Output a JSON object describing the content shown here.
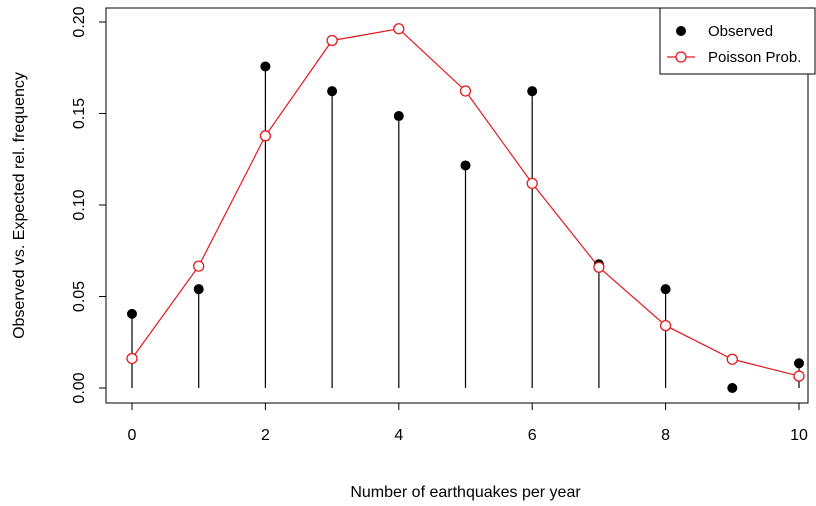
{
  "chart_data": {
    "type": "scatter",
    "xlabel": "Number of earthquakes per year",
    "ylabel": "Observed vs. Expected rel. frequency",
    "xlim": [
      0,
      10
    ],
    "ylim": [
      0,
      0.2
    ],
    "grid": false,
    "legend_position": "top-right",
    "x_ticks": [
      {
        "value": 0,
        "label": "0"
      },
      {
        "value": 2,
        "label": "2"
      },
      {
        "value": 4,
        "label": "4"
      },
      {
        "value": 6,
        "label": "6"
      },
      {
        "value": 8,
        "label": "8"
      },
      {
        "value": 10,
        "label": "10"
      }
    ],
    "y_ticks": [
      {
        "value": 0.0,
        "label": "0.00"
      },
      {
        "value": 0.05,
        "label": "0.05"
      },
      {
        "value": 0.1,
        "label": "0.10"
      },
      {
        "value": 0.15,
        "label": "0.15"
      },
      {
        "value": 0.2,
        "label": "0.20"
      }
    ],
    "x": [
      0,
      1,
      2,
      3,
      4,
      5,
      6,
      7,
      8,
      9,
      10
    ],
    "series": [
      {
        "name": "Observed",
        "style": "filled-points-with-drop-lines",
        "color": "#000000",
        "values": [
          0.0405,
          0.054,
          0.1757,
          0.1622,
          0.1486,
          0.1216,
          0.1622,
          0.0676,
          0.054,
          0.0,
          0.0135
        ]
      },
      {
        "name": "Poisson Prob.",
        "style": "open-points-connected-line",
        "color": "#e41a1c",
        "values": [
          0.0161,
          0.0666,
          0.1378,
          0.1899,
          0.1963,
          0.1623,
          0.1118,
          0.066,
          0.0341,
          0.0157,
          0.0065
        ]
      }
    ]
  }
}
